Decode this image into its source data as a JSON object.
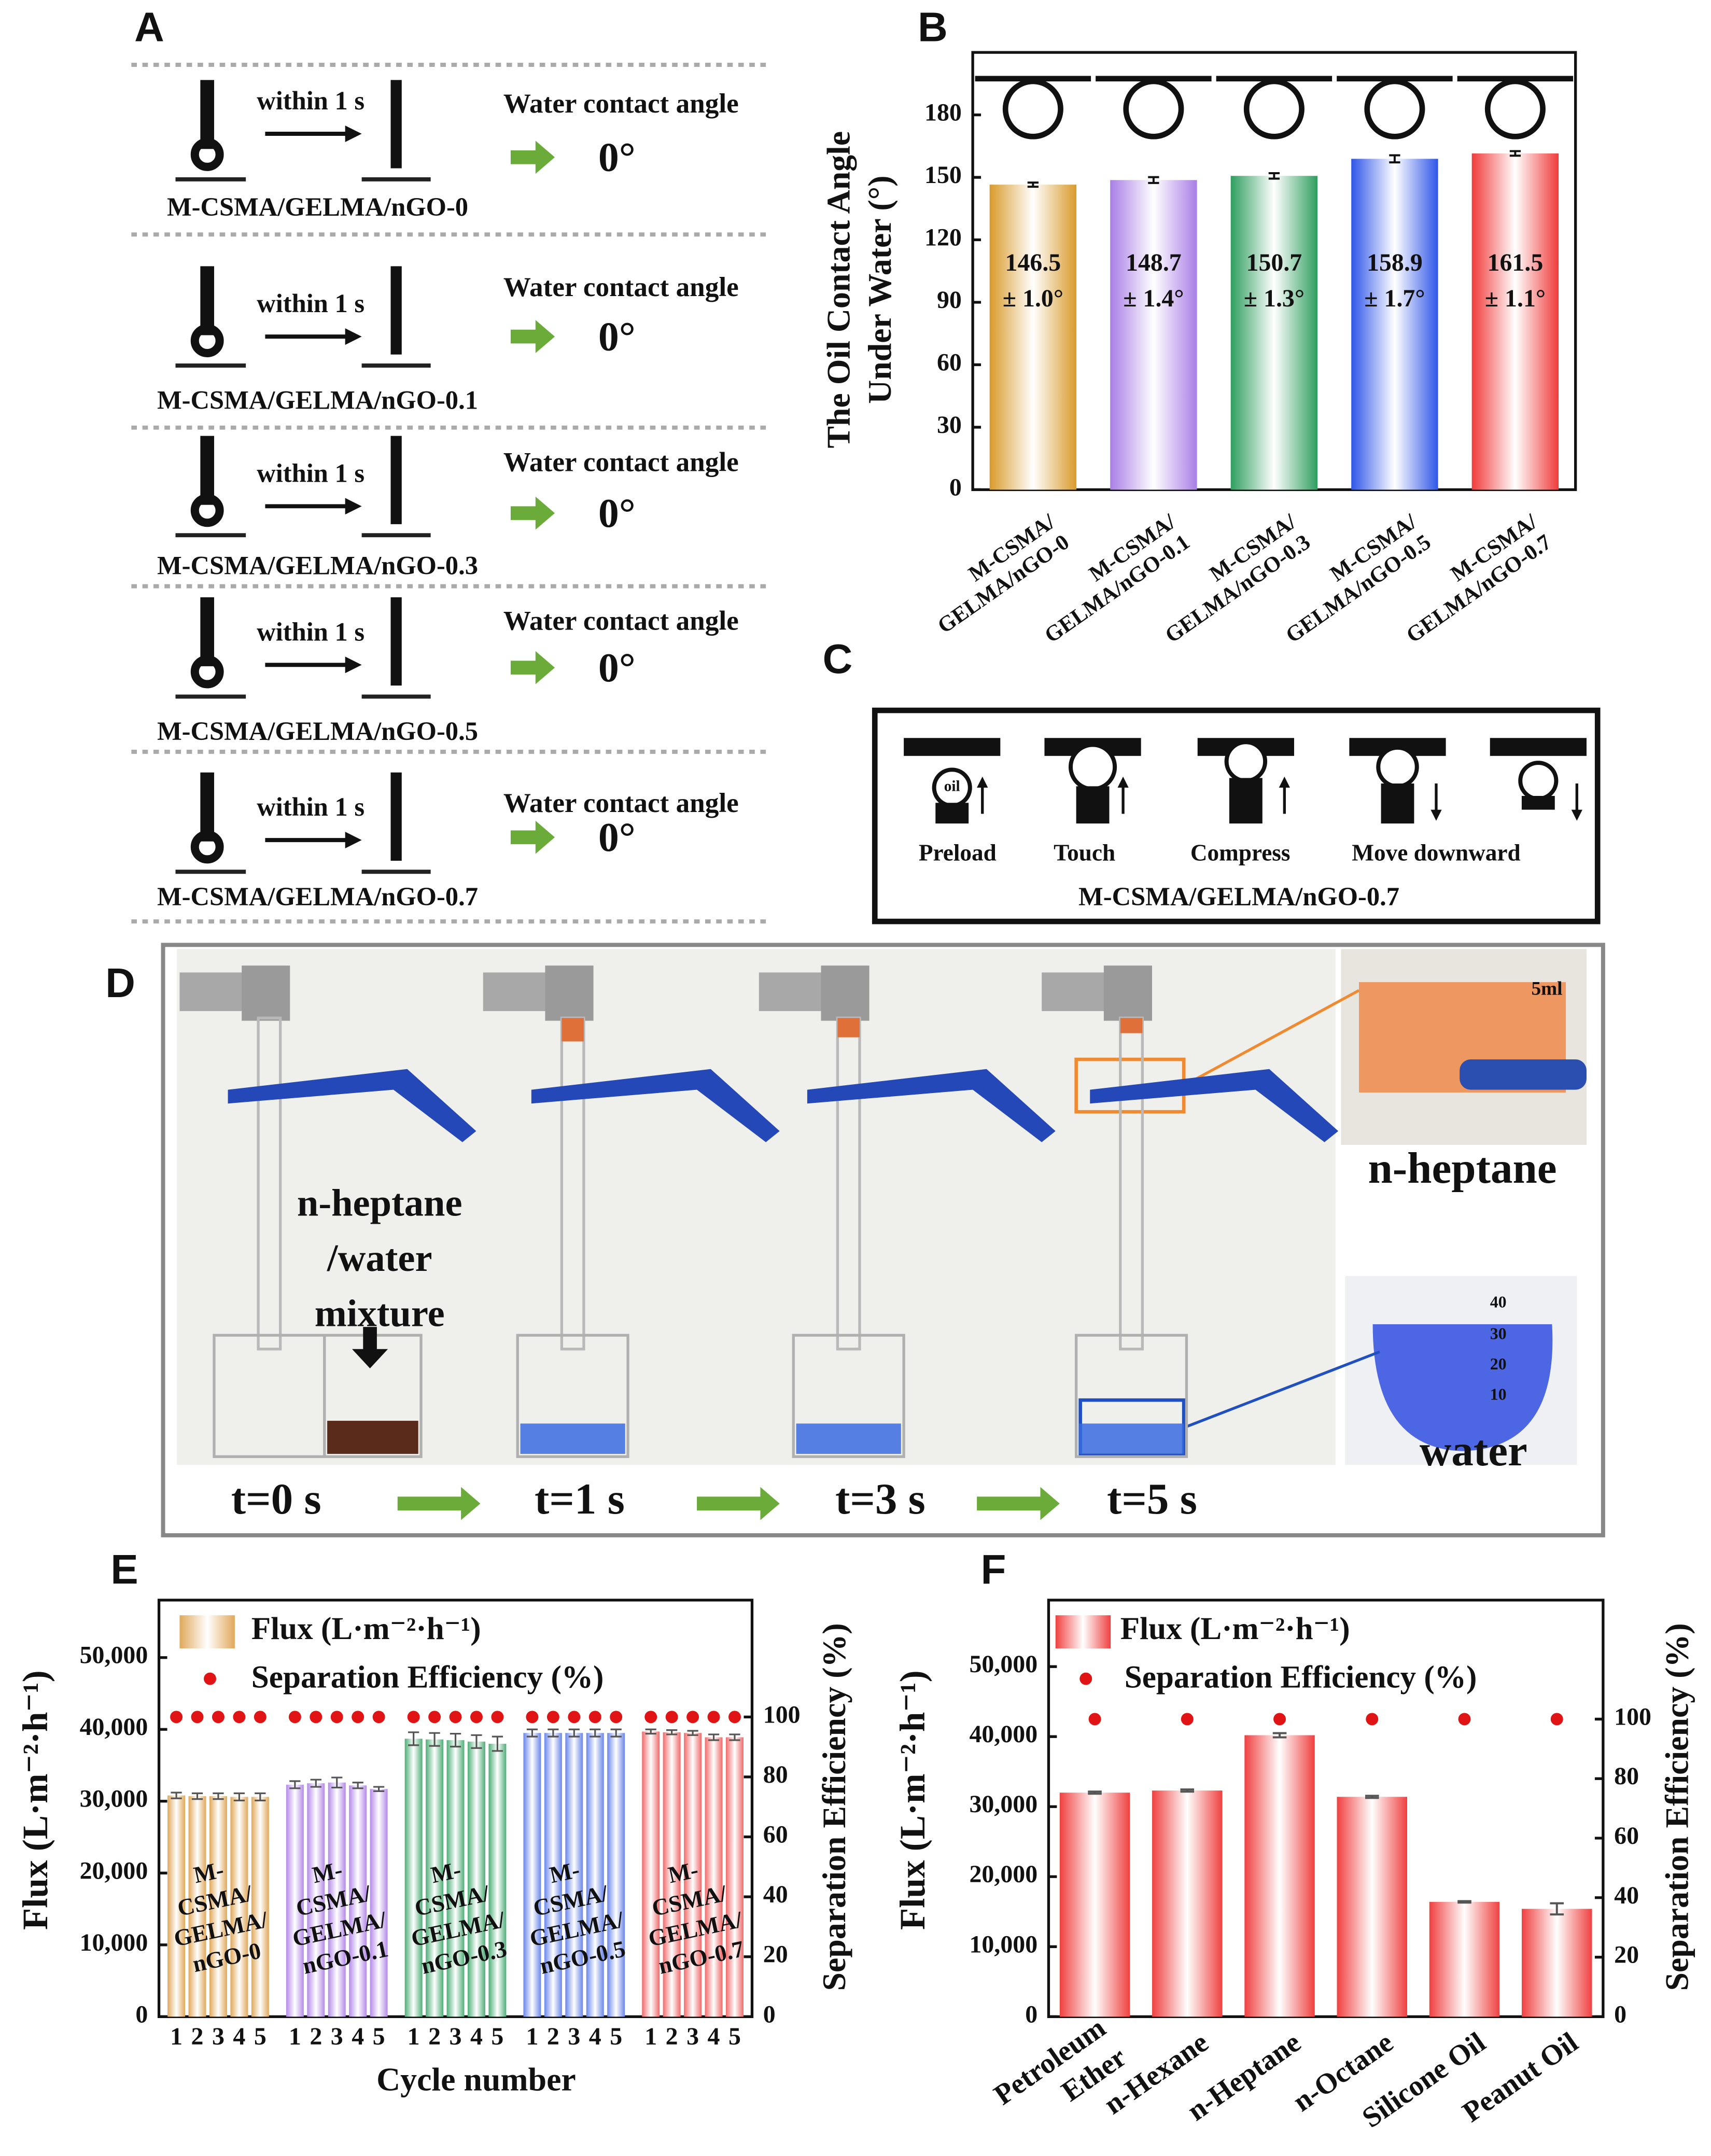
{
  "panel_labels": [
    "A",
    "B",
    "C",
    "D",
    "E",
    "F"
  ],
  "panel_a": {
    "rows": [
      {
        "action": "within 1 s",
        "measure": "Water contact angle",
        "angle": "0°",
        "sample": "M-CSMA/GELMA/nGO-0"
      },
      {
        "action": "within 1 s",
        "measure": "Water contact angle",
        "angle": "0°",
        "sample": "M-CSMA/GELMA/nGO-0.1"
      },
      {
        "action": "within 1 s",
        "measure": "Water contact angle",
        "angle": "0°",
        "sample": "M-CSMA/GELMA/nGO-0.3"
      },
      {
        "action": "within 1 s",
        "measure": "Water contact angle",
        "angle": "0°",
        "sample": "M-CSMA/GELMA/nGO-0.5"
      },
      {
        "action": "within 1 s",
        "measure": "Water contact angle",
        "angle": "0°",
        "sample": "M-CSMA/GELMA/nGO-0.7"
      }
    ]
  },
  "panel_c": {
    "steps": [
      "Preload",
      "Touch",
      "Compress",
      "Move downward"
    ],
    "droplet_label": "oil",
    "sample": "M-CSMA/GELMA/nGO-0.7"
  },
  "panel_d": {
    "mixture_label": "n-heptane\n/water\nmixture",
    "times": [
      "t=0 s",
      "t=1 s",
      "t=3 s",
      "t=5 s"
    ],
    "inset_labels": [
      "n-heptane",
      "water"
    ],
    "inset_marks": [
      "5ml",
      "40",
      "30",
      "20",
      "10"
    ]
  },
  "chart_data": [
    {
      "type": "bar",
      "ylabel": "The Oil Contact Angle\nUnder Water (°)",
      "categories": [
        "M-CSMA/\nGELMA/nGO-0",
        "M-CSMA/\nGELMA/nGO-0.1",
        "M-CSMA/\nGELMA/nGO-0.3",
        "M-CSMA/\nGELMA/nGO-0.5",
        "M-CSMA/\nGELMA/nGO-0.7"
      ],
      "values": [
        146.5,
        148.7,
        150.7,
        158.9,
        161.5
      ],
      "errors": [
        1.0,
        1.4,
        1.3,
        1.7,
        1.1
      ],
      "error_labels": [
        "± 1.0°",
        "± 1.4°",
        "± 1.3°",
        "± 1.7°",
        "± 1.1°"
      ],
      "colors": [
        "#d99a2b",
        "#a97ee6",
        "#2e9e5e",
        "#2f55e8",
        "#f03a3a"
      ],
      "ylim": [
        0,
        210
      ],
      "yticks": [
        0,
        30,
        60,
        90,
        120,
        150,
        180
      ]
    },
    {
      "type": "grouped_bar",
      "xlabel": "Cycle number",
      "ylabel": "Flux (L·m⁻²·h⁻¹)",
      "y2label": "Separation  Efficiency (%)",
      "categories": [
        "M-\nCSMA/\nGELMA/\nnGO-0",
        "M-\nCSMA/\nGELMA/\nnGO-0.1",
        "M-\nCSMA/\nGELMA/\nnGO-0.3",
        "M-\nCSMA/\nGELMA/\nnGO-0.5",
        "M-\nCSMA/\nGELMA/\nnGO-0.7"
      ],
      "cycles": [
        1,
        2,
        3,
        4,
        5
      ],
      "group_colors": [
        "#e0a85a",
        "#b48ae8",
        "#4fae78",
        "#6a86ea",
        "#f06a6a"
      ],
      "series": [
        {
          "name": "Flux (L·m⁻²·h⁻¹)",
          "color": "#e0a85a",
          "values": [
            [
              30800,
              30700,
              30700,
              30600,
              30600
            ],
            [
              32300,
              32500,
              32600,
              32200,
              31700
            ],
            [
              38700,
              38600,
              38500,
              38300,
              38000
            ],
            [
              39500,
              39500,
              39500,
              39500,
              39500
            ],
            [
              39700,
              39600,
              39500,
              38900,
              38900
            ]
          ],
          "errors": [
            [
              400,
              400,
              400,
              500,
              500
            ],
            [
              500,
              500,
              700,
              400,
              300
            ],
            [
              900,
              900,
              900,
              900,
              1000
            ],
            [
              500,
              500,
              500,
              500,
              500
            ],
            [
              300,
              300,
              300,
              400,
              400
            ]
          ]
        },
        {
          "name": "Separation Efficiency (%)",
          "color": "#e01414",
          "axis": "y2",
          "values": [
            [
              100,
              100,
              100,
              100,
              100
            ],
            [
              100,
              100,
              100,
              100,
              100
            ],
            [
              100,
              100,
              100,
              100,
              100
            ],
            [
              100,
              100,
              100,
              100,
              100
            ],
            [
              100,
              100,
              100,
              100,
              100
            ]
          ]
        }
      ],
      "ylim": [
        0,
        58000
      ],
      "yticks": [
        0,
        {
          "value": 10000,
          "label": "10,000"
        },
        {
          "value": 20000,
          "label": "20,000"
        },
        {
          "value": 30000,
          "label": "30,000"
        },
        {
          "value": 40000,
          "label": "40,000"
        },
        {
          "value": 50000,
          "label": "50,000"
        }
      ],
      "y2lim": [
        0,
        139
      ],
      "y2ticks": [
        0,
        20,
        40,
        60,
        80,
        100
      ]
    },
    {
      "type": "combo",
      "ylabel": "Flux (L·m⁻²·h⁻¹)",
      "y2label": "Separation Efficiency (%)",
      "categories": [
        "Petroleum\nEther",
        "n-Hexane",
        "n-Heptane",
        "n-Octane",
        "Silicone Oil",
        "Peanut Oil"
      ],
      "series": [
        {
          "name": "Flux (L·m⁻²·h⁻¹)",
          "color": "#f04040",
          "values": [
            32000,
            32300,
            40200,
            31400,
            16400,
            15400
          ],
          "errors": [
            150,
            150,
            300,
            150,
            100,
            800
          ]
        },
        {
          "name": "Separation Efficiency (%)",
          "color": "#e01414",
          "axis": "y2",
          "values": [
            100,
            100,
            100,
            100,
            100,
            100
          ]
        }
      ],
      "ylim": [
        0,
        59500
      ],
      "yticks": [
        0,
        {
          "value": 10000,
          "label": "10,000"
        },
        {
          "value": 20000,
          "label": "20,000"
        },
        {
          "value": 30000,
          "label": "30,000"
        },
        {
          "value": 40000,
          "label": "40,000"
        },
        {
          "value": 50000,
          "label": "50,000"
        }
      ],
      "y2lim": [
        0,
        140
      ],
      "y2ticks": [
        0,
        20,
        40,
        60,
        80,
        100
      ]
    }
  ]
}
